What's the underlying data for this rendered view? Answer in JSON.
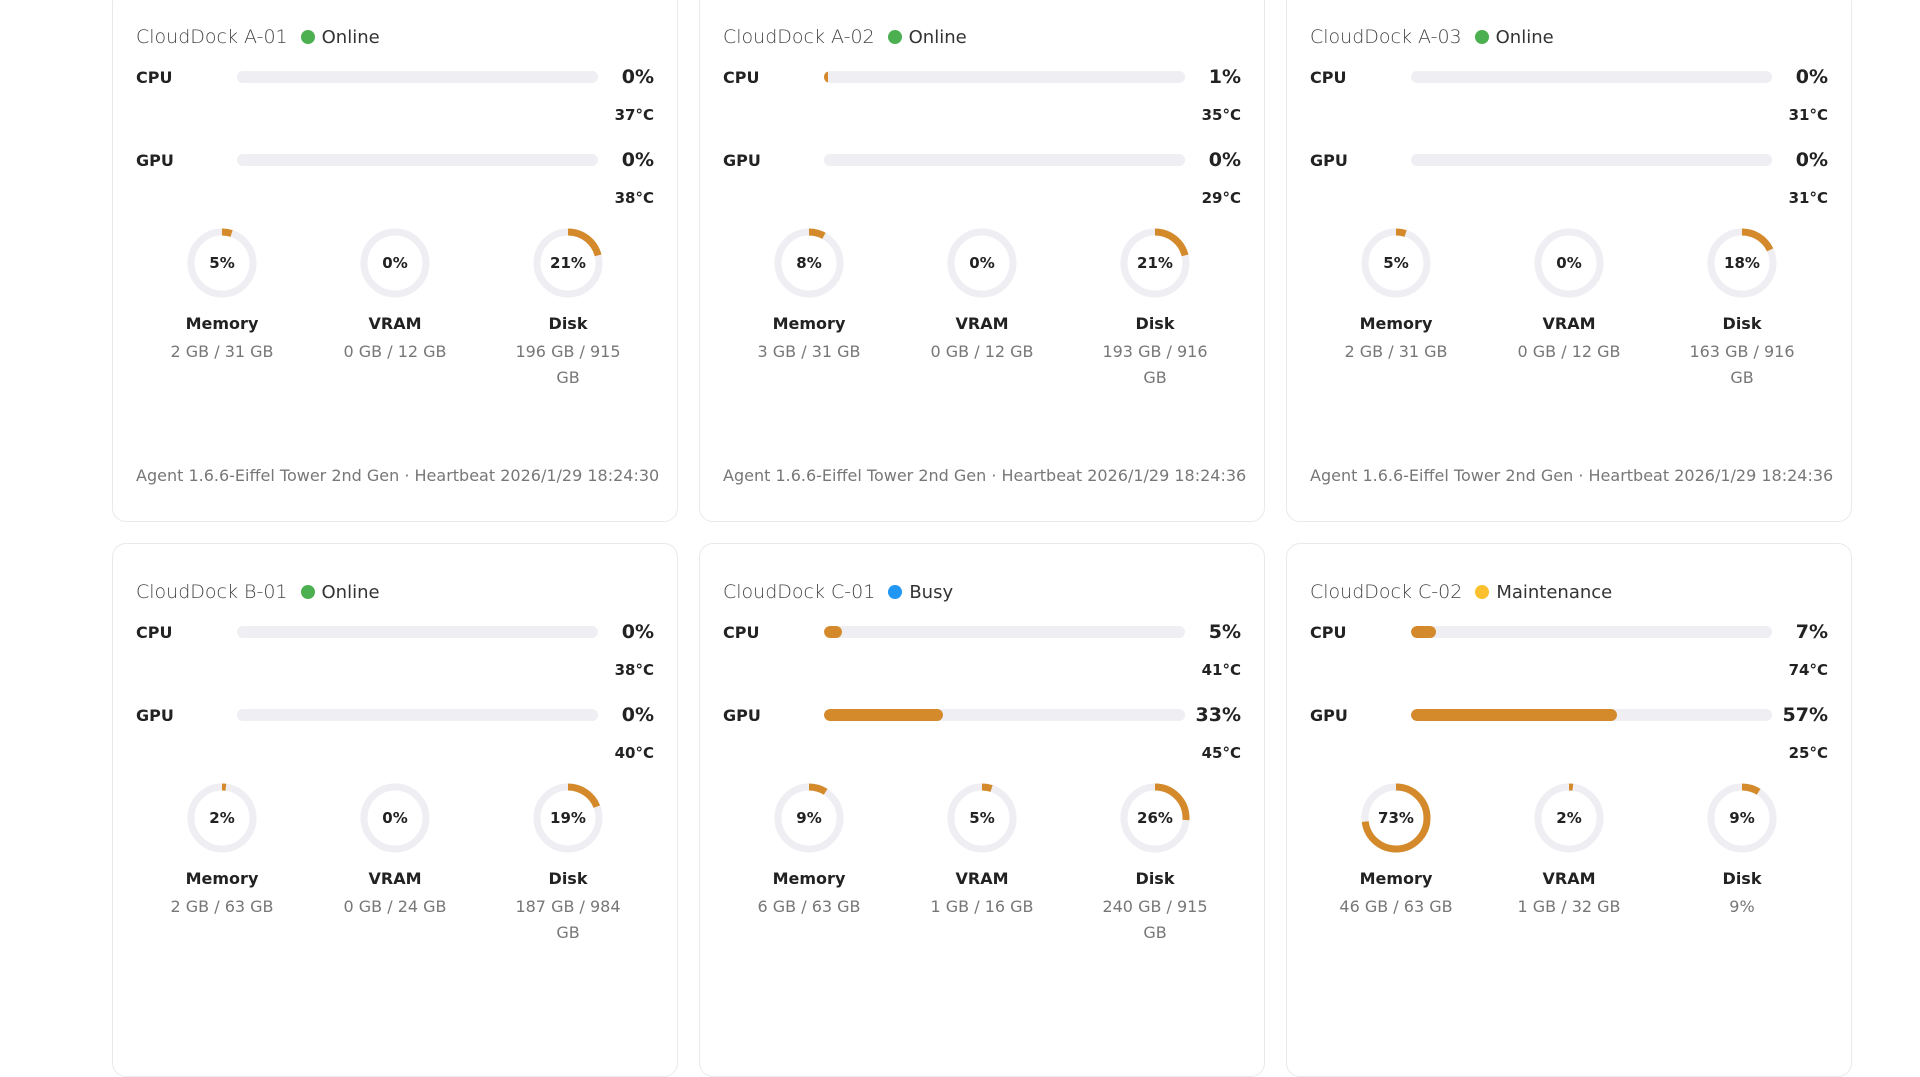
{
  "colors": {
    "accent": "#d48a2a",
    "track": "#eeeef3",
    "online": "#4caf50",
    "busy": "#2196f3",
    "maintenance": "#fbc02d"
  },
  "cards": [
    {
      "name": "CloudDock A-01",
      "status": "Online",
      "status_color": "#4caf50",
      "cpu": {
        "label": "CPU",
        "value": "0%",
        "pct": 0,
        "temp": "37°C"
      },
      "gpu": {
        "label": "GPU",
        "value": "0%",
        "pct": 0,
        "temp": "38°C"
      },
      "rings": [
        {
          "pct_text": "5%",
          "pct": 5,
          "name": "Memory",
          "detail": "2 GB / 31 GB"
        },
        {
          "pct_text": "0%",
          "pct": 0,
          "name": "VRAM",
          "detail": "0 GB / 12 GB"
        },
        {
          "pct_text": "21%",
          "pct": 21,
          "name": "Disk",
          "detail": "196 GB / 915 GB"
        }
      ],
      "footer": "Agent 1.6.6-Eiffel Tower 2nd Gen · Heartbeat 2026/1/29 18:24:30"
    },
    {
      "name": "CloudDock A-02",
      "status": "Online",
      "status_color": "#4caf50",
      "cpu": {
        "label": "CPU",
        "value": "1%",
        "pct": 1,
        "temp": "35°C"
      },
      "gpu": {
        "label": "GPU",
        "value": "0%",
        "pct": 0,
        "temp": "29°C"
      },
      "rings": [
        {
          "pct_text": "8%",
          "pct": 8,
          "name": "Memory",
          "detail": "3 GB / 31 GB"
        },
        {
          "pct_text": "0%",
          "pct": 0,
          "name": "VRAM",
          "detail": "0 GB / 12 GB"
        },
        {
          "pct_text": "21%",
          "pct": 21,
          "name": "Disk",
          "detail": "193 GB / 916 GB"
        }
      ],
      "footer": "Agent 1.6.6-Eiffel Tower 2nd Gen · Heartbeat 2026/1/29 18:24:36"
    },
    {
      "name": "CloudDock A-03",
      "status": "Online",
      "status_color": "#4caf50",
      "cpu": {
        "label": "CPU",
        "value": "0%",
        "pct": 0,
        "temp": "31°C"
      },
      "gpu": {
        "label": "GPU",
        "value": "0%",
        "pct": 0,
        "temp": "31°C"
      },
      "rings": [
        {
          "pct_text": "5%",
          "pct": 5,
          "name": "Memory",
          "detail": "2 GB / 31 GB"
        },
        {
          "pct_text": "0%",
          "pct": 0,
          "name": "VRAM",
          "detail": "0 GB / 12 GB"
        },
        {
          "pct_text": "18%",
          "pct": 18,
          "name": "Disk",
          "detail": "163 GB / 916 GB"
        }
      ],
      "footer": "Agent 1.6.6-Eiffel Tower 2nd Gen · Heartbeat 2026/1/29 18:24:36"
    },
    {
      "name": "CloudDock B-01",
      "status": "Online",
      "status_color": "#4caf50",
      "cpu": {
        "label": "CPU",
        "value": "0%",
        "pct": 0,
        "temp": "38°C"
      },
      "gpu": {
        "label": "GPU",
        "value": "0%",
        "pct": 0,
        "temp": "40°C"
      },
      "rings": [
        {
          "pct_text": "2%",
          "pct": 2,
          "name": "Memory",
          "detail": "2 GB / 63 GB"
        },
        {
          "pct_text": "0%",
          "pct": 0,
          "name": "VRAM",
          "detail": "0 GB / 24 GB"
        },
        {
          "pct_text": "19%",
          "pct": 19,
          "name": "Disk",
          "detail": "187 GB / 984 GB"
        }
      ],
      "footer": ""
    },
    {
      "name": "CloudDock C-01",
      "status": "Busy",
      "status_color": "#2196f3",
      "cpu": {
        "label": "CPU",
        "value": "5%",
        "pct": 5,
        "temp": "41°C"
      },
      "gpu": {
        "label": "GPU",
        "value": "33%",
        "pct": 33,
        "temp": "45°C"
      },
      "rings": [
        {
          "pct_text": "9%",
          "pct": 9,
          "name": "Memory",
          "detail": "6 GB / 63 GB"
        },
        {
          "pct_text": "5%",
          "pct": 5,
          "name": "VRAM",
          "detail": "1 GB / 16 GB"
        },
        {
          "pct_text": "26%",
          "pct": 26,
          "name": "Disk",
          "detail": "240 GB / 915 GB"
        }
      ],
      "footer": ""
    },
    {
      "name": "CloudDock C-02",
      "status": "Maintenance",
      "status_color": "#fbc02d",
      "cpu": {
        "label": "CPU",
        "value": "7%",
        "pct": 7,
        "temp": "74°C"
      },
      "gpu": {
        "label": "GPU",
        "value": "57%",
        "pct": 57,
        "temp": "25°C"
      },
      "rings": [
        {
          "pct_text": "73%",
          "pct": 73,
          "name": "Memory",
          "detail": "46 GB / 63 GB"
        },
        {
          "pct_text": "2%",
          "pct": 2,
          "name": "VRAM",
          "detail": "1 GB / 32 GB"
        },
        {
          "pct_text": "9%",
          "pct": 9,
          "name": "Disk",
          "detail": "9%"
        }
      ],
      "footer": ""
    }
  ]
}
